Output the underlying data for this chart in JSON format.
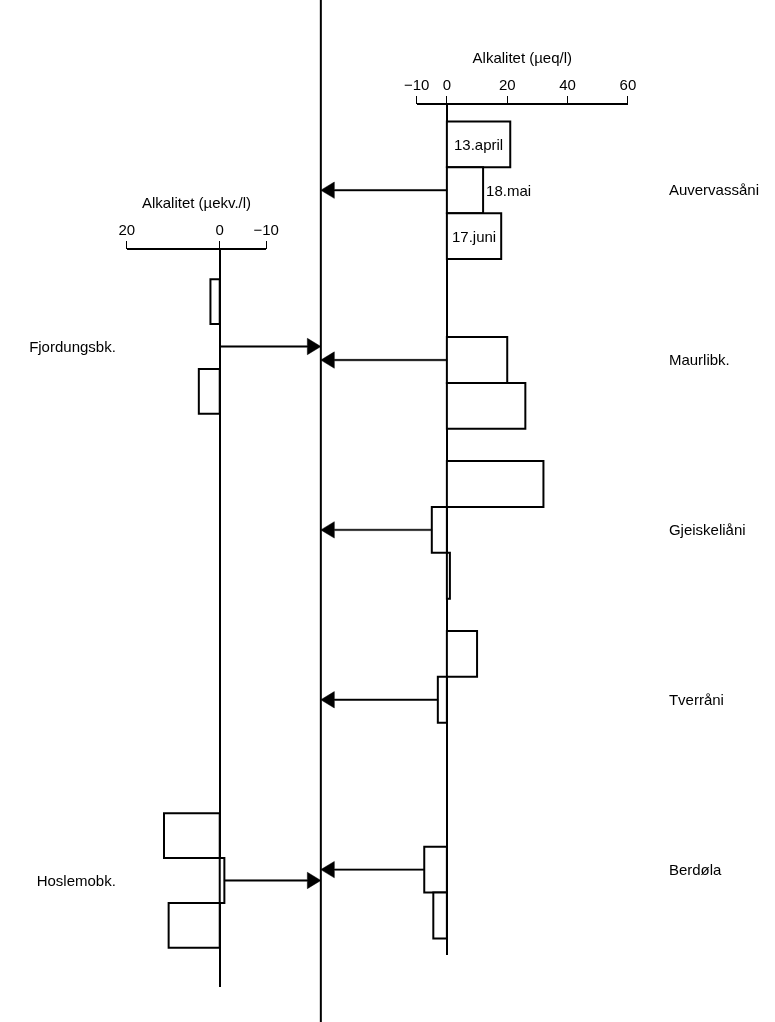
{
  "chart_data": [
    {
      "type": "bar",
      "orientation": "horizontal",
      "xlabel": "Alkalitet (µeq/l)",
      "categories": [
        "Auvervassåni",
        "Maurlibk.",
        "Gjeiskeliåni",
        "Tverråni",
        "Berdøla"
      ],
      "xlim": [
        -10,
        60
      ],
      "xticks": [
        -10,
        0,
        20,
        40,
        60
      ],
      "legend": false,
      "series": [
        {
          "name": "13.april",
          "color": "#ffffff",
          "values": [
            21,
            0,
            32,
            10,
            0
          ]
        },
        {
          "name": "18.mai",
          "color": "#ffffff",
          "values": [
            12,
            20,
            -5,
            -3,
            -7.5
          ]
        },
        {
          "name": "17.juni",
          "color": "#ffffff",
          "values": [
            18,
            26,
            1,
            0,
            -4.5
          ]
        }
      ]
    },
    {
      "type": "bar",
      "orientation": "horizontal",
      "xlabel": "Alkalitet (µekv./l)",
      "categories": [
        "Fjordungsbk.",
        "Hoslemobk."
      ],
      "xlim": [
        20,
        -10
      ],
      "xticks": [
        20,
        0,
        -10
      ],
      "legend": false,
      "series": [
        {
          "color": "#ffffff",
          "values": [
            2,
            12
          ]
        },
        {
          "color": "#ffffff",
          "values": [
            0,
            -1
          ]
        },
        {
          "color": "#ffffff",
          "values": [
            4.5,
            11
          ]
        }
      ]
    }
  ]
}
